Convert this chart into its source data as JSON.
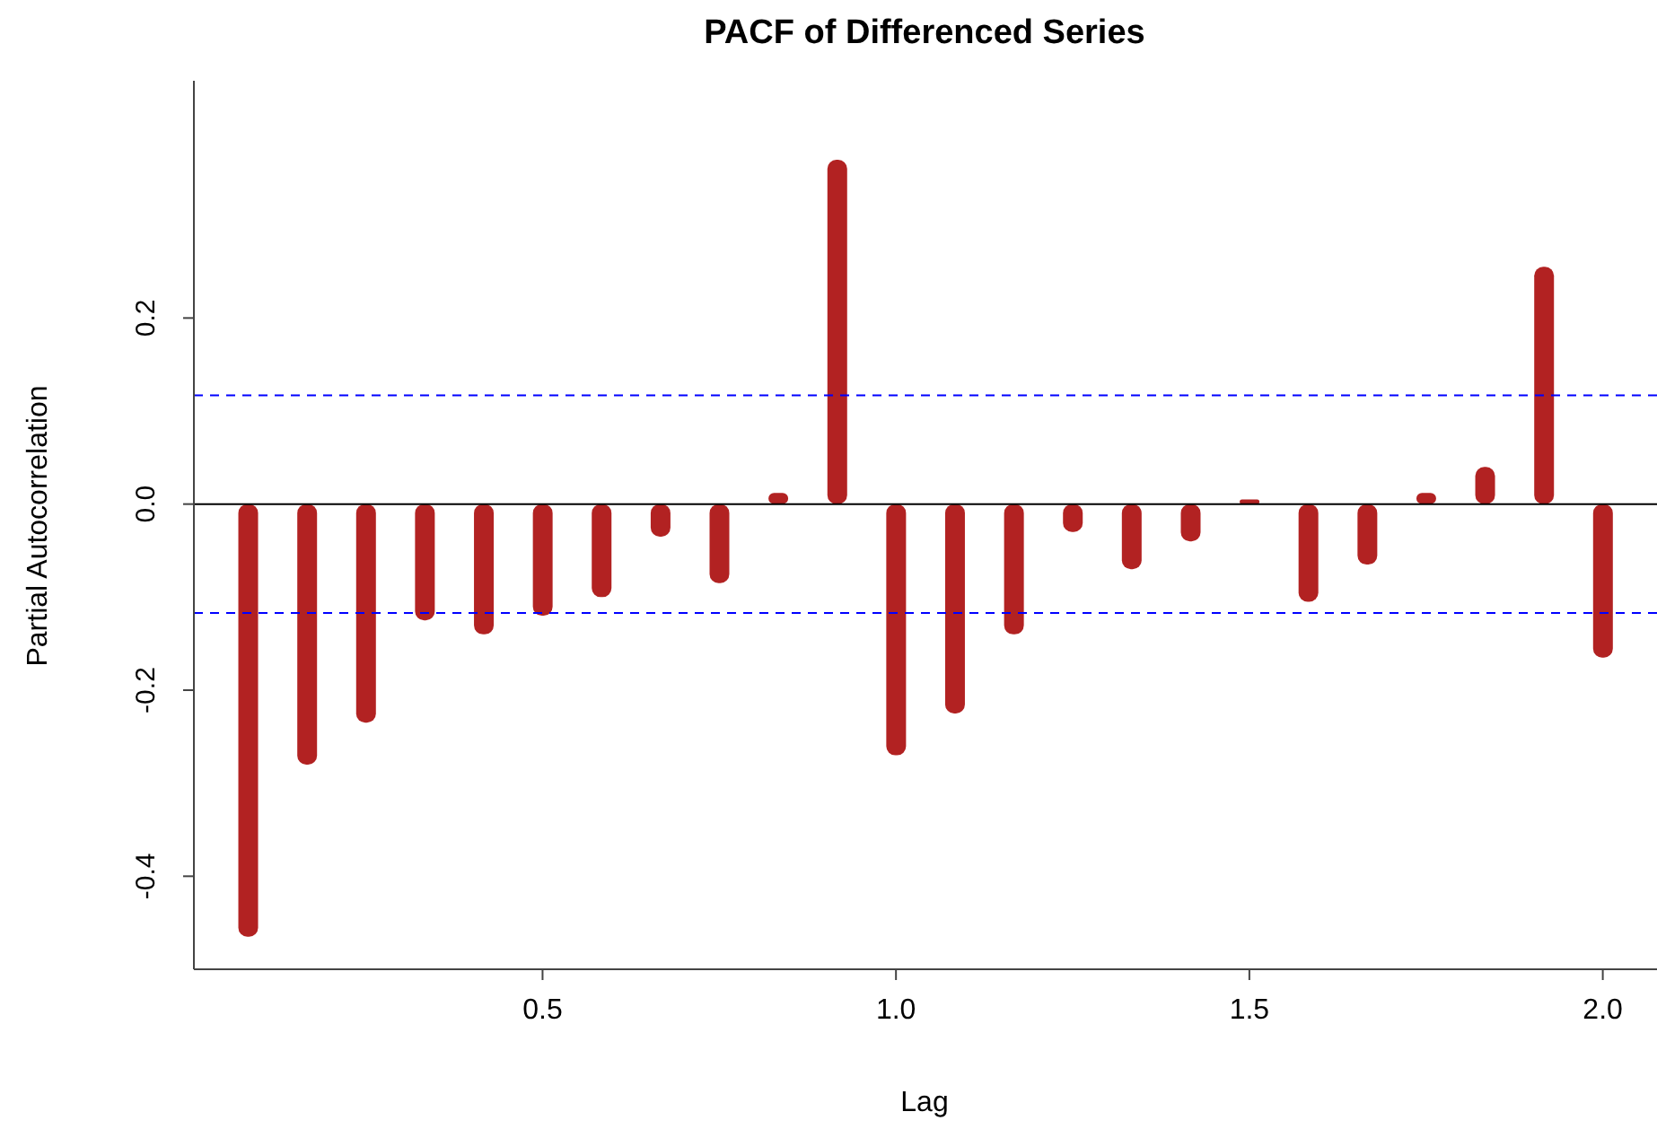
{
  "chart_data": {
    "type": "bar",
    "title": "PACF of Differenced Series",
    "xlabel": "Lag",
    "ylabel": "Partial Autocorrelation",
    "x": [
      0.0833,
      0.1667,
      0.25,
      0.3333,
      0.4167,
      0.5,
      0.5833,
      0.6667,
      0.75,
      0.8333,
      0.9167,
      1.0,
      1.0833,
      1.1667,
      1.25,
      1.3333,
      1.4167,
      1.5,
      1.5833,
      1.6667,
      1.75,
      1.8333,
      1.9167,
      2.0
    ],
    "values": [
      -0.465,
      -0.28,
      -0.235,
      -0.125,
      -0.14,
      -0.12,
      -0.1,
      -0.035,
      -0.085,
      0.012,
      0.37,
      -0.27,
      -0.225,
      -0.14,
      -0.03,
      -0.07,
      -0.04,
      0.005,
      -0.105,
      -0.065,
      0.012,
      0.04,
      0.255,
      -0.165
    ],
    "color": "#b22222",
    "xlim": [
      0.0067,
      2.0767
    ],
    "ylim": [
      -0.5,
      0.455
    ],
    "xticks": [
      0.5,
      {
        "value": 1,
        "label": "1.0"
      },
      1.5,
      {
        "value": 2,
        "label": "2.0"
      }
    ],
    "yticks": [
      -0.4,
      -0.2,
      {
        "value": 0,
        "label": "0.0"
      },
      0.2
    ],
    "ref_lines": [
      {
        "axis": "y",
        "value": 0,
        "color": "#000000",
        "line_style": "solid"
      },
      {
        "axis": "y",
        "value": 0.117,
        "color": "#0000ff",
        "line_style": "dashed"
      },
      {
        "axis": "y",
        "value": -0.117,
        "color": "#0000ff",
        "line_style": "dashed"
      }
    ],
    "grid": false,
    "legend": false
  }
}
